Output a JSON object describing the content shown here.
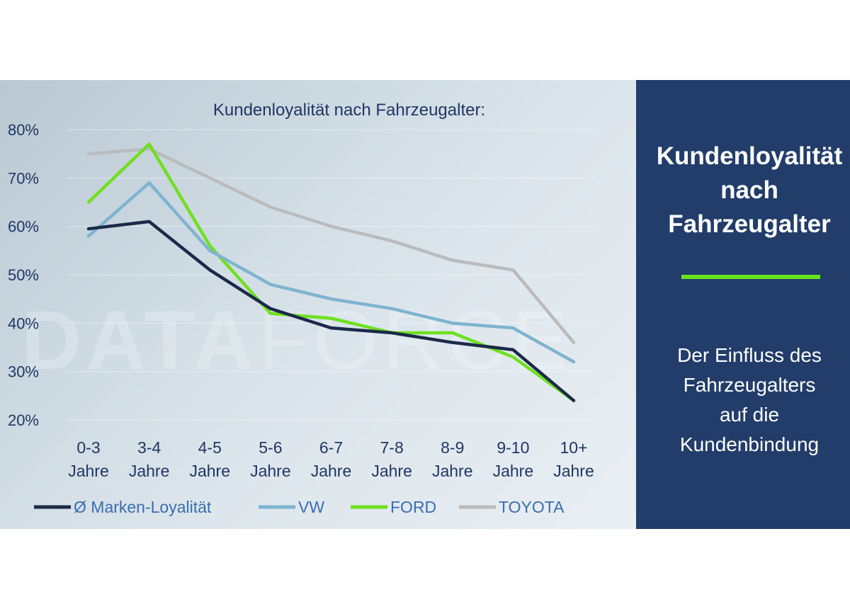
{
  "panel": {
    "title_lines": [
      "Kundenloyalität",
      "nach",
      "Fahrzeugalter"
    ],
    "subtitle_lines": [
      "Der Einfluss des",
      "Fahrzeugalters",
      "auf die",
      "Kundenbindung"
    ],
    "background_color": "#223d6a",
    "accent_color": "#67e21b"
  },
  "watermark": {
    "bold": "DATA",
    "light": "FORCE"
  },
  "chart_data": {
    "type": "line",
    "title": "Kundenloyalität nach Fahrzeugalter:",
    "categories": [
      "0-3 Jahre",
      "3-4 Jahre",
      "4-5 Jahre",
      "5-6 Jahre",
      "6-7 Jahre",
      "7-8 Jahre",
      "8-9 Jahre",
      "9-10 Jahre",
      "10+ Jahre"
    ],
    "ylim": [
      20,
      80
    ],
    "y_ticks": [
      "20%",
      "30%",
      "40%",
      "50%",
      "60%",
      "70%",
      "80%"
    ],
    "grid": true,
    "legend_position": "bottom",
    "series": [
      {
        "name": "Ø Marken-Loyalität",
        "color": "#1b2a48",
        "values": [
          59.5,
          61,
          51,
          43,
          39,
          38,
          36,
          34.5,
          24
        ]
      },
      {
        "name": "VW",
        "color": "#7eb4cf",
        "values": [
          58,
          69,
          55,
          48,
          45,
          43,
          40,
          39,
          32
        ]
      },
      {
        "name": "FORD",
        "color": "#6fe01f",
        "values": [
          65,
          77,
          56,
          42,
          41,
          38,
          38,
          33,
          24
        ]
      },
      {
        "name": "TOYOTA",
        "color": "#b9bbbd",
        "values": [
          75,
          76,
          70,
          64,
          60,
          57,
          53,
          51,
          36
        ]
      }
    ]
  }
}
